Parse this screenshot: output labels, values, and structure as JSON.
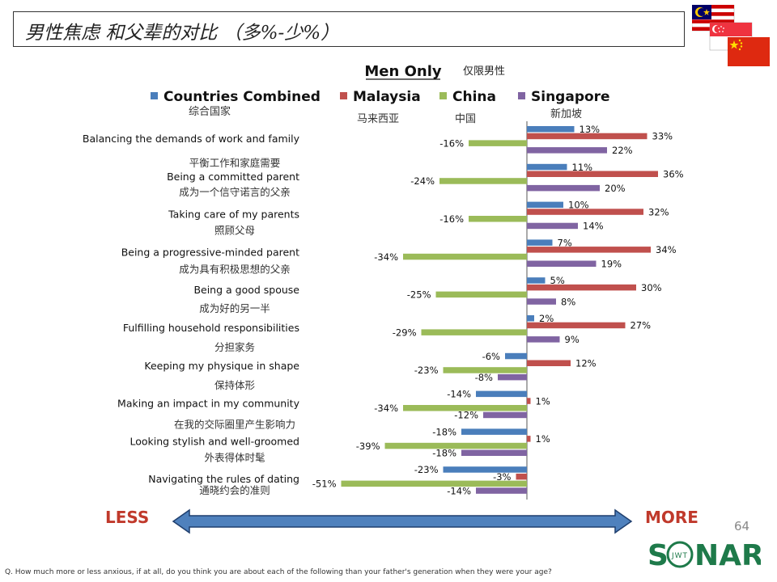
{
  "title": "男性焦虑 和父辈的对比 （多%-少%）",
  "chart_data": {
    "type": "bar",
    "orientation": "horizontal",
    "title": "Men Only",
    "title_cn": "仅限男性",
    "categories": [
      "Balancing the demands of work and family",
      "Being a committed parent",
      "Taking care of my parents",
      "Being a progressive-minded parent",
      "Being a good spouse",
      "Fulfilling household responsibilities",
      "Keeping my physique in shape",
      "Making an impact in my community",
      "Looking stylish and well-groomed",
      "Navigating the rules of dating"
    ],
    "categories_cn": [
      "平衡工作和家庭需要",
      "成为一个信守诺言的父亲",
      "照顾父母",
      "成为具有积极思想的父亲",
      "成为好的另一半",
      "分担家务",
      "保持体形",
      "在我的交际圈里产生影响力",
      "外表得体时髦",
      "通晓约会的准则"
    ],
    "series": [
      {
        "name": "Countries Combined",
        "name_cn": "综合国家",
        "color": "#4a7ebb",
        "values": [
          13,
          11,
          10,
          7,
          5,
          2,
          -6,
          -14,
          -18,
          -23
        ]
      },
      {
        "name": "Malaysia",
        "name_cn": "马来西亚",
        "color": "#c0504d",
        "values": [
          33,
          36,
          32,
          34,
          30,
          27,
          12,
          1,
          1,
          -3
        ]
      },
      {
        "name": "China",
        "name_cn": "中国",
        "color": "#9bbb59",
        "values": [
          -16,
          -24,
          -16,
          -34,
          -25,
          -29,
          -23,
          -34,
          -39,
          -51
        ]
      },
      {
        "name": "Singapore",
        "name_cn": "新加坡",
        "color": "#8064a2",
        "values": [
          22,
          20,
          14,
          19,
          8,
          9,
          -8,
          -12,
          -18,
          -14
        ]
      }
    ],
    "value_suffix": "%",
    "xlim": [
      -51,
      36
    ],
    "legend_position": "top"
  },
  "less_label": "LESS",
  "more_label": "MORE",
  "page_number": "64",
  "logo_text": "SONAR",
  "logo_sub": "JWT",
  "footnote": "Q. How much more or less anxious, if at all, do you think you are about each of the following than your father's generation when they were your age?",
  "colors": {
    "less_more": "#c0392b",
    "arrow_fill": "#4f81bd",
    "arrow_stroke": "#1f3f6e",
    "logo": "#1e7a4a"
  }
}
